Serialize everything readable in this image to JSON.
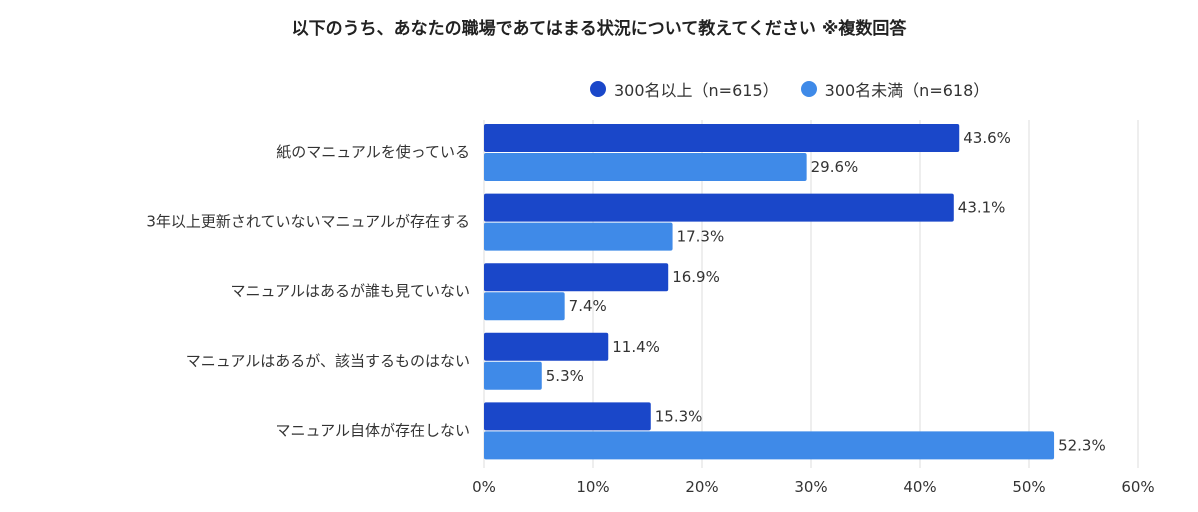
{
  "title": "以下のうち、あなたの職場であてはまる状況について教えてください ※複数回答",
  "colors": {
    "series1": "#1a47c9",
    "series2": "#3f8ae8",
    "grid": "#dddddd",
    "text": "#333333"
  },
  "legend": [
    {
      "label": "300名以上（n=615）",
      "color": "#1a47c9"
    },
    {
      "label": "300名未満（n=618）",
      "color": "#3f8ae8"
    }
  ],
  "chart_data": {
    "type": "bar",
    "orientation": "horizontal",
    "title": "以下のうち、あなたの職場であてはまる状況について教えてください ※複数回答",
    "categories": [
      "紙のマニュアルを使っている",
      "3年以上更新されていないマニュアルが存在する",
      "マニュアルはあるが誰も見ていない",
      "マニュアルはあるが、該当するものはない",
      "マニュアル自体が存在しない"
    ],
    "series": [
      {
        "name": "300名以上（n=615）",
        "values": [
          43.6,
          43.1,
          16.9,
          11.4,
          15.3
        ]
      },
      {
        "name": "300名未満（n=618）",
        "values": [
          29.6,
          17.3,
          7.4,
          5.3,
          52.3
        ]
      }
    ],
    "value_labels": [
      [
        "43.6%",
        "43.1%",
        "16.9%",
        "11.4%",
        "15.3%"
      ],
      [
        "29.6%",
        "17.3%",
        "7.4%",
        "5.3%",
        "52.3%"
      ]
    ],
    "xlim": [
      0,
      60
    ],
    "xticks": [
      "0%",
      "10%",
      "20%",
      "30%",
      "40%",
      "50%",
      "60%"
    ],
    "grid": true,
    "legend_position": "top-right"
  }
}
